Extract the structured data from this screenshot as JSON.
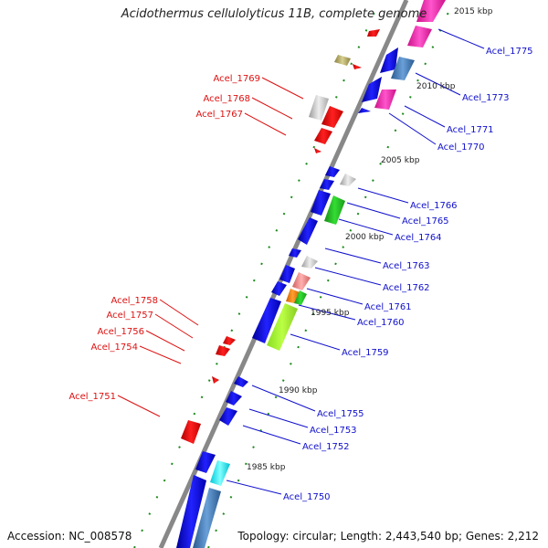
{
  "title": "Acidothermus cellulolyticus 11B, complete genome",
  "footer": {
    "accession": "Accession: NC_008578",
    "summary": "Topology: circular; Length: 2,443,540 bp; Genes: 2,212"
  },
  "colors": {
    "backbone": "#8a8a8a",
    "right_label": "#1010cc",
    "left_label": "#dd1111",
    "tick": "#1a8a1a"
  },
  "scale_labels": [
    "1985 kbp",
    "1990 kbp",
    "1995 kbp",
    "2000 kbp",
    "2005 kbp",
    "2010 kbp",
    "2015 kbp"
  ],
  "genes_right": [
    "Acel_1775",
    "Acel_1773",
    "Acel_1771",
    "Acel_1770",
    "Acel_1766",
    "Acel_1765",
    "Acel_1764",
    "Acel_1763",
    "Acel_1762",
    "Acel_1761",
    "Acel_1760",
    "Acel_1759",
    "Acel_1755",
    "Acel_1753",
    "Acel_1752",
    "Acel_1750"
  ],
  "genes_left": [
    "Acel_1769",
    "Acel_1768",
    "Acel_1767",
    "Acel_1758",
    "Acel_1757",
    "Acel_1756",
    "Acel_1754",
    "Acel_1751"
  ]
}
